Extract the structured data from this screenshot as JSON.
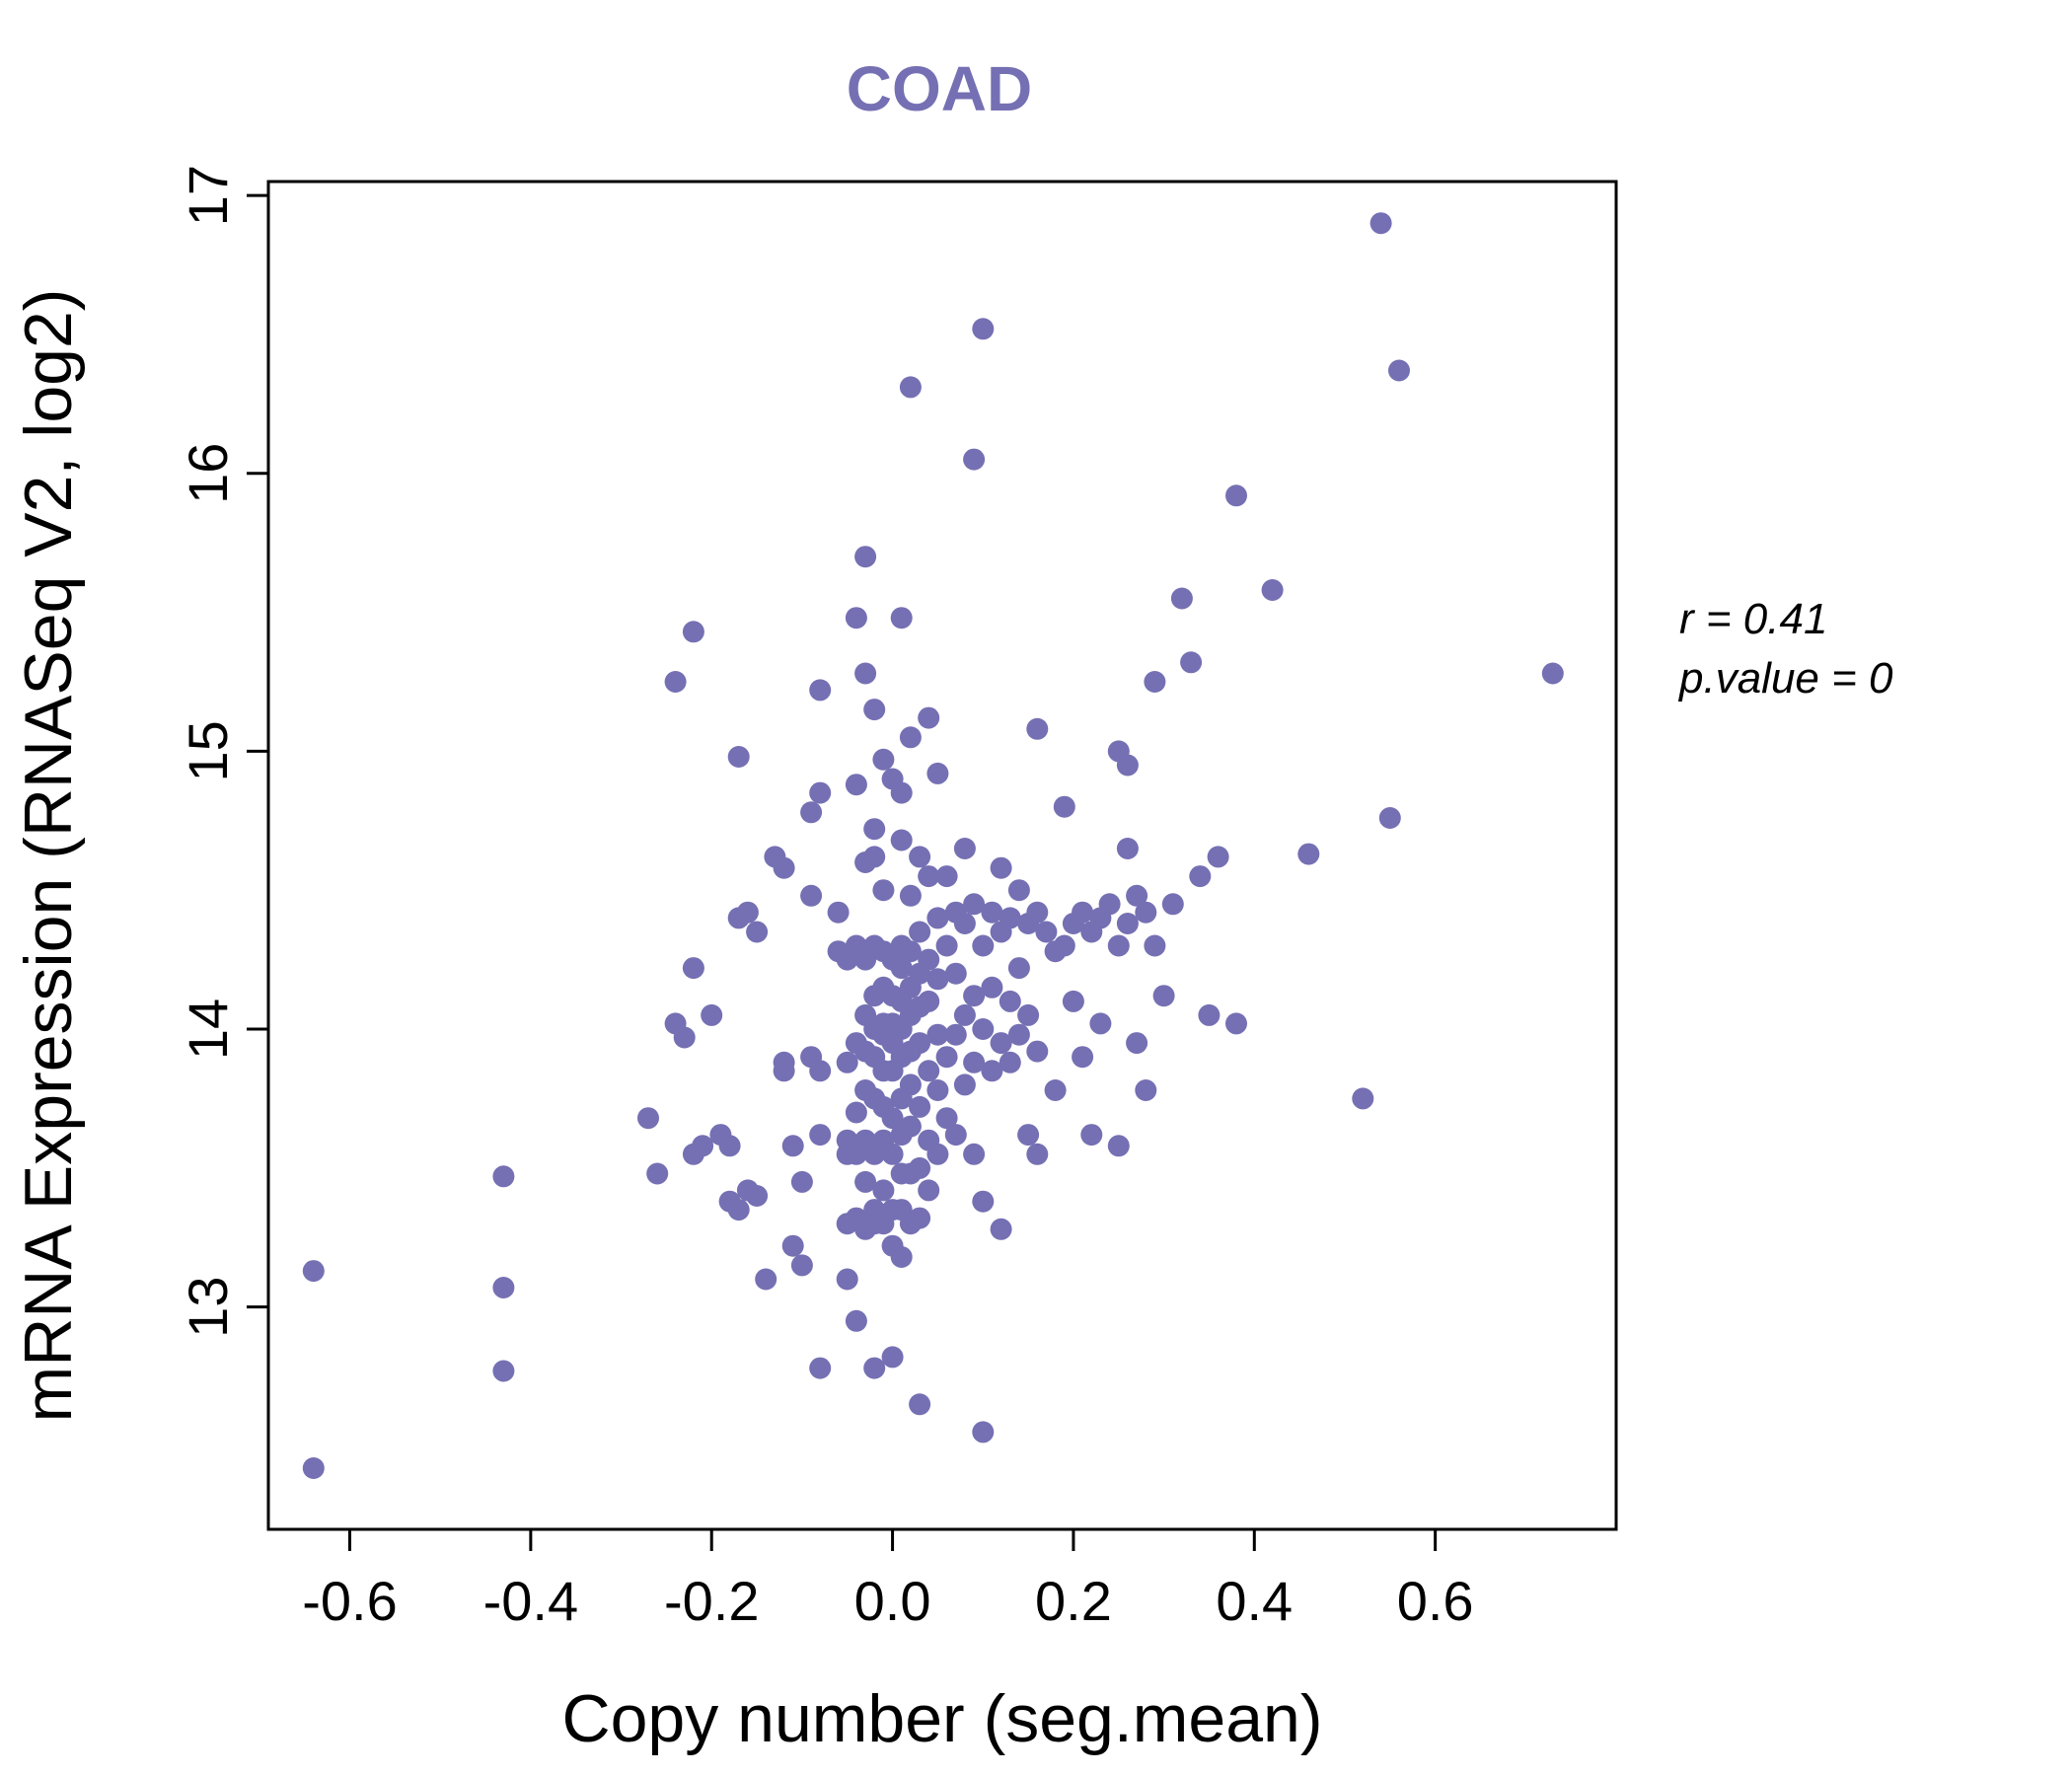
{
  "chart_data": {
    "type": "scatter",
    "title": "COAD",
    "title_color": "#7570B3",
    "xlabel": "Copy number (seg.mean)",
    "ylabel": "mRNA Expression (RNASeq V2, log2)",
    "xlim": [
      -0.69,
      0.8
    ],
    "ylim": [
      12.2,
      17.05
    ],
    "grid": false,
    "legend": "none",
    "point_color": "#7570B3",
    "point_radius": 11,
    "annotation": {
      "line1": "r = 0.41",
      "line2": "p.value = 0"
    },
    "xticks": [
      {
        "v": -0.6,
        "label": "-0.6"
      },
      {
        "v": -0.4,
        "label": "-0.4"
      },
      {
        "v": -0.2,
        "label": "-0.2"
      },
      {
        "v": 0.0,
        "label": "0.0"
      },
      {
        "v": 0.2,
        "label": "0.2"
      },
      {
        "v": 0.4,
        "label": "0.4"
      },
      {
        "v": 0.6,
        "label": "0.6"
      }
    ],
    "yticks": [
      {
        "v": 13,
        "label": "13"
      },
      {
        "v": 14,
        "label": "14"
      },
      {
        "v": 15,
        "label": "15"
      },
      {
        "v": 16,
        "label": "16"
      },
      {
        "v": 17,
        "label": "17"
      }
    ],
    "points": [
      [
        -0.64,
        13.13
      ],
      [
        -0.64,
        12.42
      ],
      [
        -0.43,
        13.47
      ],
      [
        -0.43,
        13.07
      ],
      [
        -0.43,
        12.77
      ],
      [
        -0.27,
        13.68
      ],
      [
        -0.26,
        13.48
      ],
      [
        -0.24,
        15.25
      ],
      [
        -0.22,
        15.43
      ],
      [
        -0.23,
        13.97
      ],
      [
        -0.24,
        14.02
      ],
      [
        -0.22,
        14.22
      ],
      [
        -0.21,
        13.58
      ],
      [
        -0.22,
        13.55
      ],
      [
        -0.19,
        13.62
      ],
      [
        -0.18,
        13.58
      ],
      [
        -0.18,
        13.38
      ],
      [
        -0.17,
        13.35
      ],
      [
        -0.16,
        13.42
      ],
      [
        -0.17,
        14.98
      ],
      [
        -0.17,
        14.4
      ],
      [
        -0.16,
        14.42
      ],
      [
        -0.15,
        14.35
      ],
      [
        -0.15,
        13.4
      ],
      [
        -0.2,
        14.05
      ],
      [
        -0.13,
        14.62
      ],
      [
        -0.12,
        14.58
      ],
      [
        -0.12,
        13.88
      ],
      [
        -0.12,
        13.85
      ],
      [
        -0.11,
        13.58
      ],
      [
        -0.11,
        13.22
      ],
      [
        -0.1,
        13.45
      ],
      [
        -0.1,
        13.15
      ],
      [
        -0.09,
        14.78
      ],
      [
        -0.09,
        14.48
      ],
      [
        -0.08,
        15.22
      ],
      [
        -0.08,
        14.85
      ],
      [
        -0.09,
        13.9
      ],
      [
        -0.08,
        13.85
      ],
      [
        -0.08,
        13.62
      ],
      [
        -0.08,
        12.78
      ],
      [
        -0.14,
        13.1
      ],
      [
        -0.06,
        14.42
      ],
      [
        -0.06,
        14.28
      ],
      [
        -0.05,
        14.25
      ],
      [
        -0.05,
        13.88
      ],
      [
        -0.05,
        13.6
      ],
      [
        -0.05,
        13.55
      ],
      [
        -0.05,
        13.3
      ],
      [
        -0.05,
        13.1
      ],
      [
        -0.04,
        15.48
      ],
      [
        -0.04,
        14.88
      ],
      [
        -0.04,
        14.3
      ],
      [
        -0.04,
        13.95
      ],
      [
        -0.04,
        13.7
      ],
      [
        -0.04,
        13.55
      ],
      [
        -0.04,
        13.32
      ],
      [
        -0.04,
        12.95
      ],
      [
        -0.03,
        15.7
      ],
      [
        -0.03,
        15.28
      ],
      [
        -0.03,
        14.6
      ],
      [
        -0.03,
        14.25
      ],
      [
        -0.03,
        14.05
      ],
      [
        -0.03,
        13.92
      ],
      [
        -0.03,
        13.78
      ],
      [
        -0.03,
        13.6
      ],
      [
        -0.03,
        13.45
      ],
      [
        -0.03,
        13.28
      ],
      [
        -0.02,
        15.15
      ],
      [
        -0.02,
        14.72
      ],
      [
        -0.02,
        14.62
      ],
      [
        -0.02,
        14.3
      ],
      [
        -0.02,
        14.12
      ],
      [
        -0.02,
        14.0
      ],
      [
        -0.02,
        13.9
      ],
      [
        -0.02,
        13.75
      ],
      [
        -0.02,
        13.55
      ],
      [
        -0.02,
        13.35
      ],
      [
        -0.02,
        13.3
      ],
      [
        -0.02,
        12.78
      ],
      [
        -0.01,
        14.97
      ],
      [
        -0.01,
        14.5
      ],
      [
        -0.01,
        14.28
      ],
      [
        -0.01,
        14.15
      ],
      [
        -0.01,
        14.02
      ],
      [
        -0.01,
        13.98
      ],
      [
        -0.01,
        13.85
      ],
      [
        -0.01,
        13.72
      ],
      [
        -0.01,
        13.6
      ],
      [
        -0.01,
        13.42
      ],
      [
        -0.01,
        13.3
      ],
      [
        0.0,
        14.9
      ],
      [
        0.0,
        14.25
      ],
      [
        0.0,
        14.12
      ],
      [
        0.0,
        14.02
      ],
      [
        0.0,
        13.95
      ],
      [
        0.0,
        13.85
      ],
      [
        0.0,
        13.68
      ],
      [
        0.0,
        13.55
      ],
      [
        0.0,
        13.35
      ],
      [
        0.0,
        13.22
      ],
      [
        0.0,
        12.82
      ],
      [
        0.01,
        15.48
      ],
      [
        0.01,
        14.85
      ],
      [
        0.01,
        14.68
      ],
      [
        0.01,
        14.3
      ],
      [
        0.01,
        14.22
      ],
      [
        0.01,
        14.1
      ],
      [
        0.01,
        14.0
      ],
      [
        0.01,
        13.9
      ],
      [
        0.01,
        13.75
      ],
      [
        0.01,
        13.62
      ],
      [
        0.01,
        13.48
      ],
      [
        0.01,
        13.35
      ],
      [
        0.01,
        13.18
      ],
      [
        0.02,
        16.31
      ],
      [
        0.02,
        15.05
      ],
      [
        0.02,
        14.48
      ],
      [
        0.02,
        14.28
      ],
      [
        0.02,
        14.15
      ],
      [
        0.02,
        14.05
      ],
      [
        0.02,
        13.92
      ],
      [
        0.02,
        13.8
      ],
      [
        0.02,
        13.65
      ],
      [
        0.02,
        13.48
      ],
      [
        0.02,
        13.3
      ],
      [
        0.03,
        14.62
      ],
      [
        0.03,
        14.35
      ],
      [
        0.03,
        14.2
      ],
      [
        0.03,
        14.08
      ],
      [
        0.03,
        13.95
      ],
      [
        0.03,
        13.72
      ],
      [
        0.03,
        13.5
      ],
      [
        0.03,
        13.32
      ],
      [
        0.03,
        12.65
      ],
      [
        0.04,
        15.12
      ],
      [
        0.04,
        14.55
      ],
      [
        0.04,
        14.25
      ],
      [
        0.04,
        14.1
      ],
      [
        0.04,
        13.85
      ],
      [
        0.04,
        13.6
      ],
      [
        0.04,
        13.42
      ],
      [
        0.05,
        14.92
      ],
      [
        0.05,
        14.4
      ],
      [
        0.05,
        14.18
      ],
      [
        0.05,
        13.98
      ],
      [
        0.05,
        13.78
      ],
      [
        0.05,
        13.55
      ],
      [
        0.06,
        14.55
      ],
      [
        0.06,
        14.3
      ],
      [
        0.06,
        13.9
      ],
      [
        0.06,
        13.68
      ],
      [
        0.07,
        14.42
      ],
      [
        0.07,
        14.2
      ],
      [
        0.07,
        13.98
      ],
      [
        0.07,
        13.62
      ],
      [
        0.08,
        14.65
      ],
      [
        0.08,
        14.38
      ],
      [
        0.08,
        14.05
      ],
      [
        0.08,
        13.8
      ],
      [
        0.09,
        16.05
      ],
      [
        0.09,
        14.45
      ],
      [
        0.09,
        14.12
      ],
      [
        0.09,
        13.88
      ],
      [
        0.09,
        13.55
      ],
      [
        0.1,
        16.52
      ],
      [
        0.1,
        14.3
      ],
      [
        0.1,
        14.0
      ],
      [
        0.1,
        13.38
      ],
      [
        0.1,
        12.55
      ],
      [
        0.11,
        14.42
      ],
      [
        0.11,
        14.15
      ],
      [
        0.11,
        13.85
      ],
      [
        0.12,
        14.58
      ],
      [
        0.12,
        14.35
      ],
      [
        0.12,
        13.95
      ],
      [
        0.12,
        13.28
      ],
      [
        0.13,
        14.4
      ],
      [
        0.13,
        14.1
      ],
      [
        0.13,
        13.88
      ],
      [
        0.14,
        14.5
      ],
      [
        0.14,
        14.22
      ],
      [
        0.14,
        13.98
      ],
      [
        0.15,
        14.38
      ],
      [
        0.15,
        14.05
      ],
      [
        0.15,
        13.62
      ],
      [
        0.16,
        15.08
      ],
      [
        0.16,
        14.42
      ],
      [
        0.16,
        13.92
      ],
      [
        0.16,
        13.55
      ],
      [
        0.17,
        14.35
      ],
      [
        0.18,
        14.28
      ],
      [
        0.18,
        13.78
      ],
      [
        0.19,
        14.8
      ],
      [
        0.19,
        14.3
      ],
      [
        0.2,
        14.38
      ],
      [
        0.2,
        14.1
      ],
      [
        0.21,
        14.42
      ],
      [
        0.21,
        13.9
      ],
      [
        0.22,
        14.35
      ],
      [
        0.22,
        13.62
      ],
      [
        0.23,
        14.4
      ],
      [
        0.23,
        14.02
      ],
      [
        0.24,
        14.45
      ],
      [
        0.25,
        15.0
      ],
      [
        0.25,
        14.3
      ],
      [
        0.25,
        13.58
      ],
      [
        0.26,
        14.95
      ],
      [
        0.26,
        14.65
      ],
      [
        0.26,
        14.38
      ],
      [
        0.27,
        14.48
      ],
      [
        0.27,
        13.95
      ],
      [
        0.28,
        14.42
      ],
      [
        0.28,
        13.78
      ],
      [
        0.29,
        15.25
      ],
      [
        0.29,
        14.3
      ],
      [
        0.3,
        14.12
      ],
      [
        0.31,
        14.45
      ],
      [
        0.32,
        15.55
      ],
      [
        0.33,
        15.32
      ],
      [
        0.34,
        14.55
      ],
      [
        0.35,
        14.05
      ],
      [
        0.36,
        14.62
      ],
      [
        0.38,
        15.92
      ],
      [
        0.38,
        14.02
      ],
      [
        0.42,
        15.58
      ],
      [
        0.46,
        14.63
      ],
      [
        0.52,
        13.75
      ],
      [
        0.54,
        16.9
      ],
      [
        0.55,
        14.76
      ],
      [
        0.56,
        16.37
      ],
      [
        0.73,
        15.28
      ]
    ]
  }
}
